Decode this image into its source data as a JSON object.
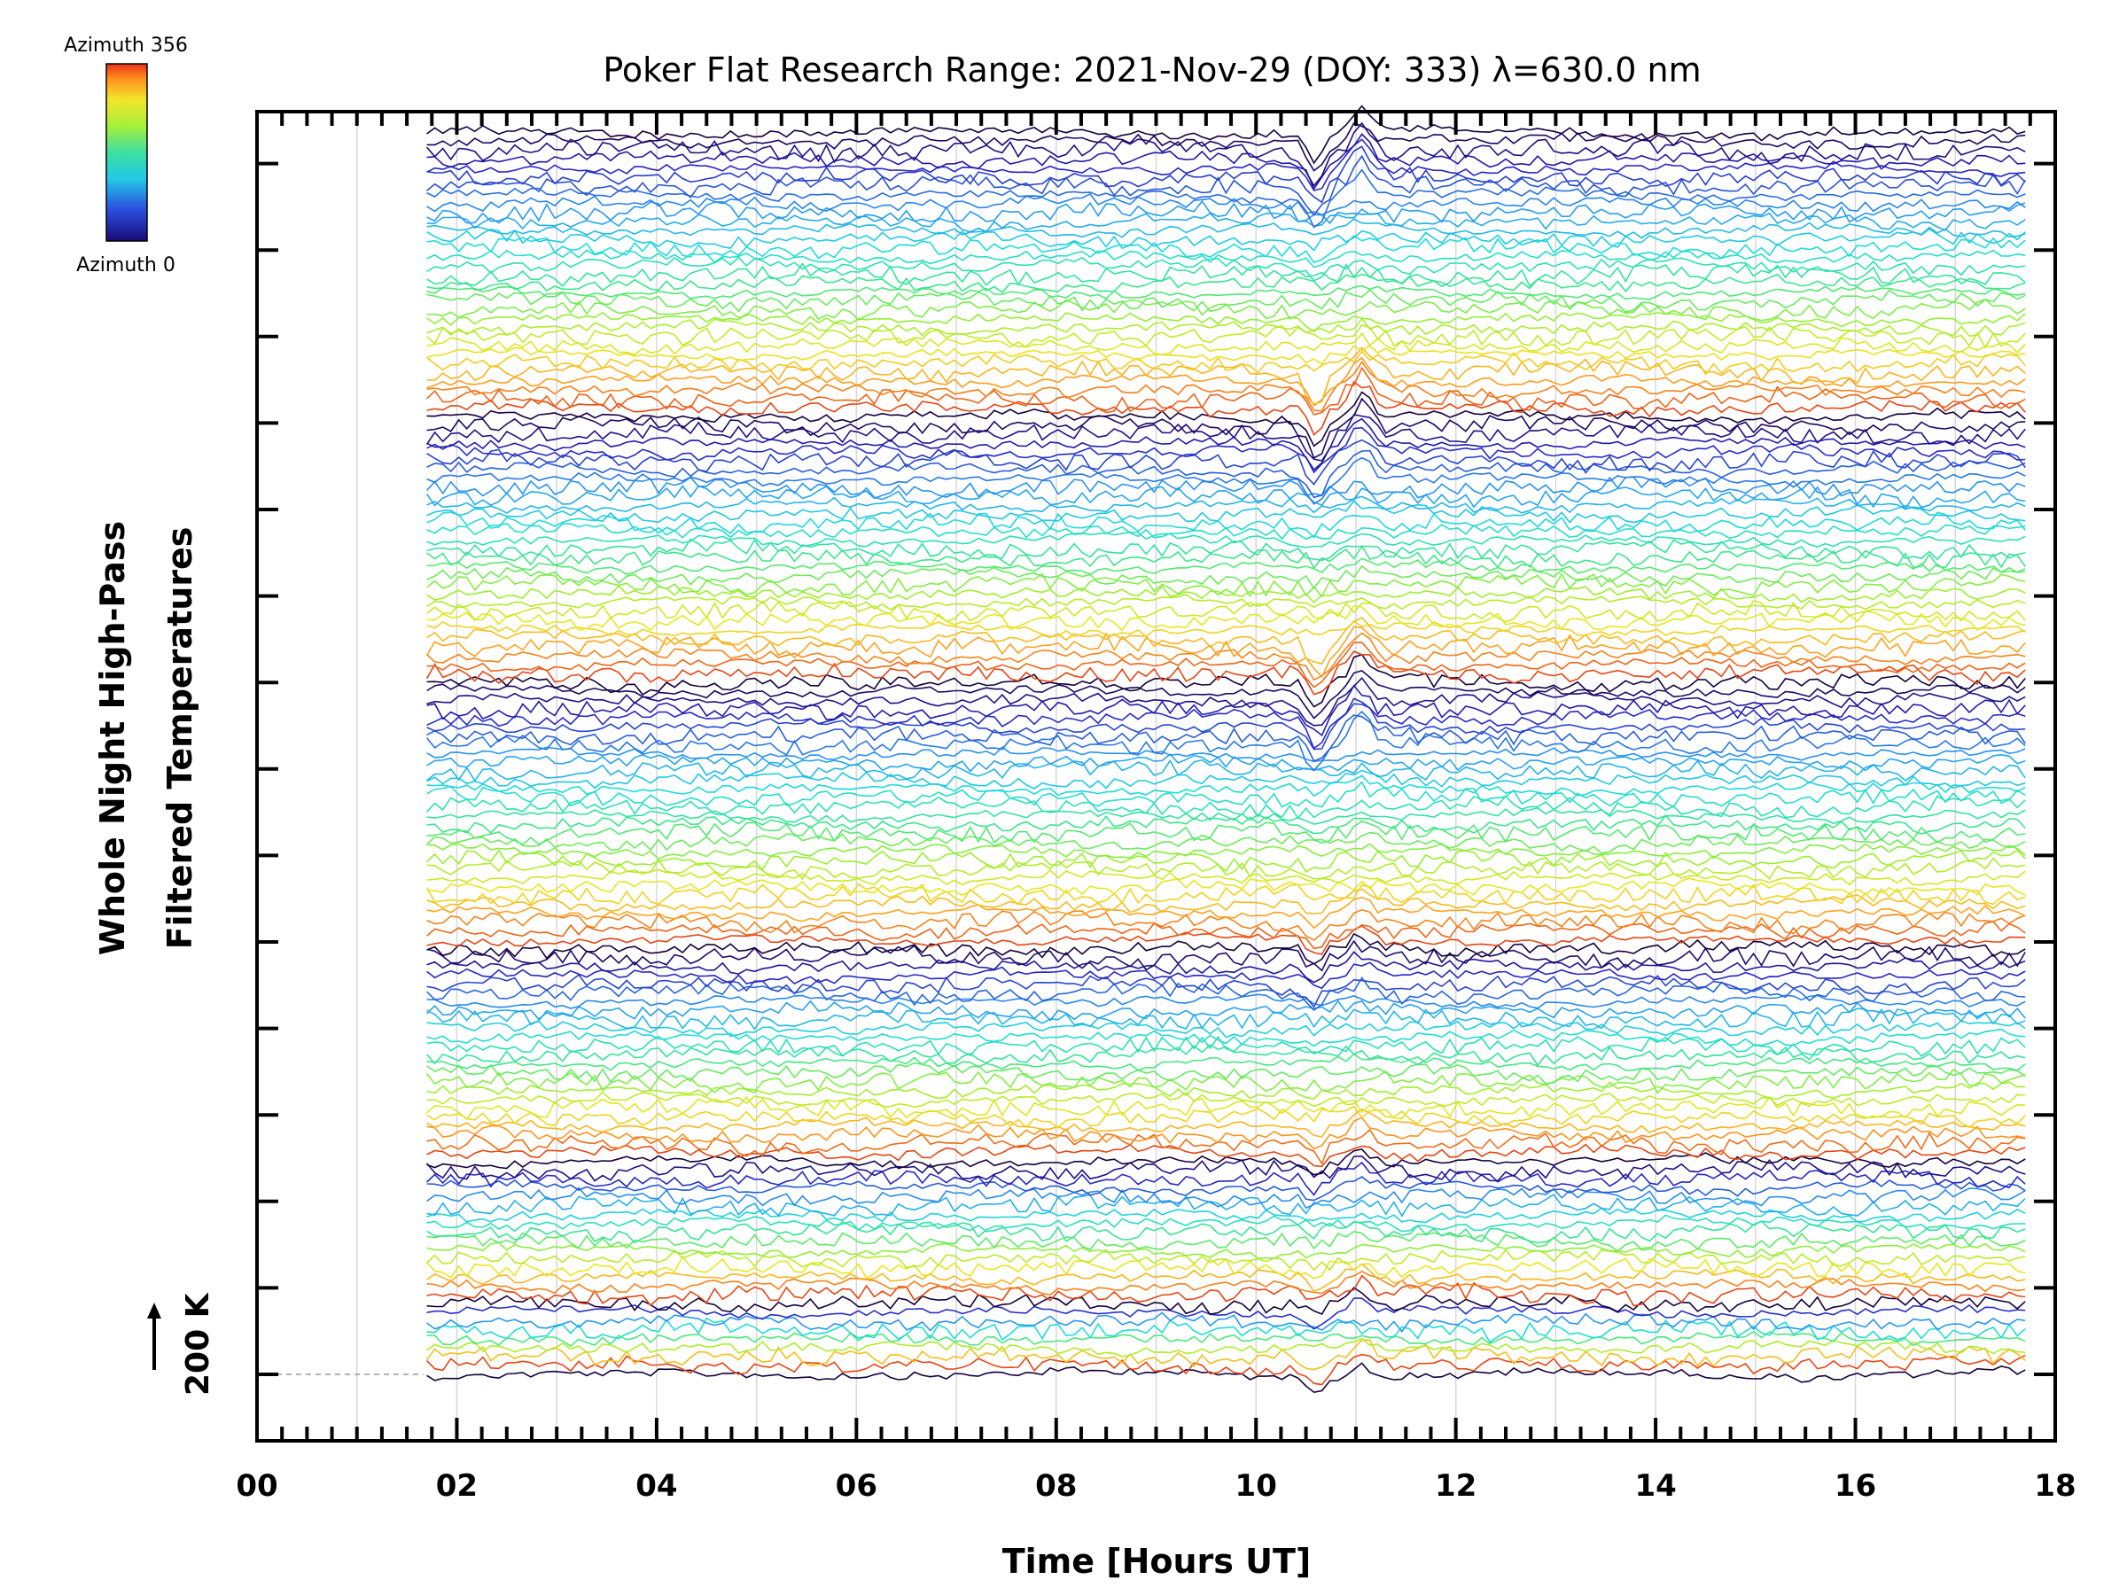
{
  "chart_data": {
    "type": "line",
    "title": "Poker Flat Research Range: 2021-Nov-29 (DOY: 333) λ=630.0 nm",
    "xlabel": "Time [Hours UT]",
    "ylabel_line1": "Whole Night High-Pass",
    "ylabel_line2": "Filtered Temperatures",
    "xlim": [
      0,
      18
    ],
    "x_ticks": [
      "00",
      "02",
      "04",
      "06",
      "08",
      "10",
      "12",
      "14",
      "16",
      "18"
    ],
    "x_tick_values": [
      0,
      2,
      4,
      6,
      8,
      10,
      12,
      14,
      16,
      18
    ],
    "grid": "vertical every 1 hour",
    "legend": {
      "placement": "top-left",
      "top_label": "Azimuth 356",
      "bottom_label": "Azimuth 0",
      "colormap": "rainbow (blue at 0, red at 356)"
    },
    "scale_bar": {
      "label": "200 K",
      "direction": "up",
      "placement": "bottom-left"
    },
    "trace_time_range": [
      1.7,
      17.7
    ],
    "trace_count": 141,
    "disturbances": [
      {
        "time": 10.6,
        "type": "dip then rise",
        "visible_in": "dark blue and orange traces"
      },
      {
        "time": 11.2,
        "type": "peak"
      }
    ],
    "colors": {
      "axis": "#000000",
      "grid": "#d8d8d8",
      "baseline": "#999999"
    }
  }
}
